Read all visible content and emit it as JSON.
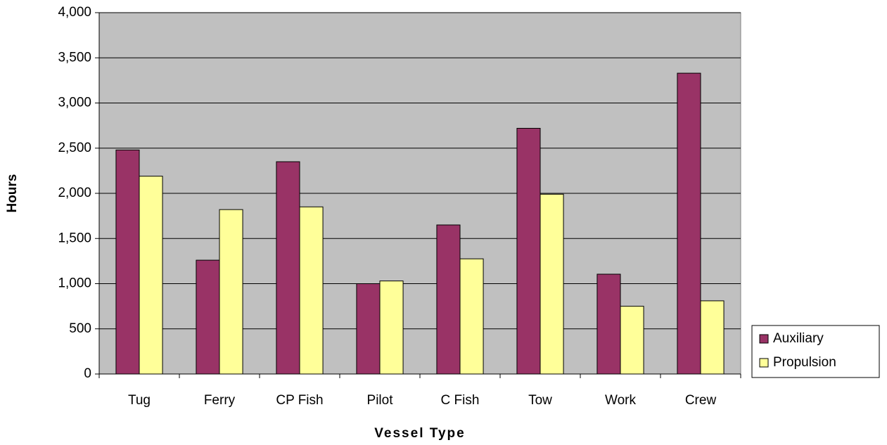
{
  "chart_data": {
    "type": "bar",
    "x_label": "Vessel Type",
    "y_label": "Hours",
    "categories": [
      "Tug",
      "Ferry",
      "CP Fish",
      "Pilot",
      "C Fish",
      "Tow",
      "Work",
      "Crew"
    ],
    "series": [
      {
        "name": "Auxiliary",
        "color": "#993366",
        "values": [
          2480,
          1260,
          2350,
          1000,
          1650,
          2720,
          1105,
          3330
        ]
      },
      {
        "name": "Propulsion",
        "color": "#ffff99",
        "values": [
          2190,
          1820,
          1850,
          1030,
          1275,
          1990,
          750,
          810
        ]
      }
    ],
    "ylim": [
      0,
      4000
    ],
    "yticks": [
      0,
      500,
      {
        "value": 1000,
        "label": "1,000"
      },
      {
        "value": 1500,
        "label": "1,500"
      },
      {
        "value": 2000,
        "label": "2,000"
      },
      {
        "value": 2500,
        "label": "2,500"
      },
      {
        "value": 3000,
        "label": "3,000"
      },
      {
        "value": 3500,
        "label": "3,500"
      },
      {
        "value": 4000,
        "label": "4,000"
      }
    ],
    "grid": true,
    "legend": "right"
  }
}
